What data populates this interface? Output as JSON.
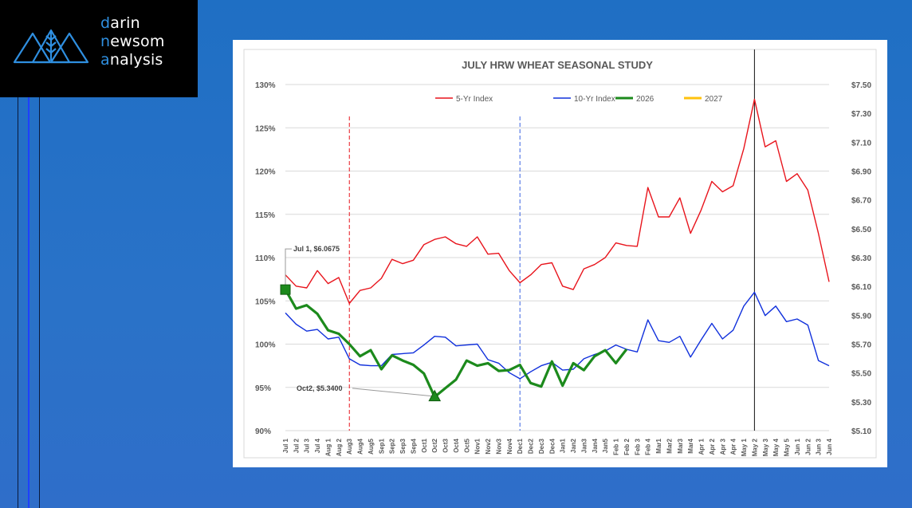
{
  "brand": {
    "line1_first": "d",
    "line1_rest": "arin",
    "line2_first": "n",
    "line2_mid": "ew",
    "line2_rest": "som",
    "line3_first": "a",
    "line3_rest": "nalysis",
    "logo_icon": "mountain-wheat-icon",
    "accent_color": "#2f8fe0"
  },
  "chart_data": {
    "type": "line",
    "title": "JULY HRW WHEAT SEASONAL STUDY",
    "legend_position": "top",
    "grid": true,
    "x_categories": [
      "Jul 1",
      "Jul 2",
      "Jul 3",
      "Jul 4",
      "Aug 1",
      "Aug 2",
      "Aug3",
      "Aug4",
      "Aug5",
      "Sep1",
      "Sep2",
      "Sep3",
      "Sep4",
      "Oct1",
      "Oct2",
      "Oct3",
      "Oct4",
      "Oct5",
      "Nov1",
      "Nov2",
      "Nov3",
      "Nov4",
      "Dec1",
      "Dec2",
      "Dec3",
      "Dec4",
      "Jan1",
      "Jan2",
      "Jan3",
      "Jan4",
      "Jan5",
      "Feb 1",
      "Feb 2",
      "Feb 3",
      "Feb 4",
      "Mar1",
      "Mar2",
      "Mar3",
      "Mar4",
      "Apr 1",
      "Apr 2",
      "Apr 3",
      "Apr 4",
      "May 1",
      "May 2",
      "May 3",
      "May 4",
      "May 5",
      "Jun 1",
      "Jun 2",
      "Jun 3",
      "Jun 4"
    ],
    "y_left": {
      "min": 90,
      "max": 130,
      "step": 5,
      "ticks": [
        "90%",
        "95%",
        "100%",
        "105%",
        "110%",
        "115%",
        "120%",
        "125%",
        "130%"
      ]
    },
    "y_right": {
      "min": 5.1,
      "max": 7.5,
      "ticks": [
        "$5.10",
        "$5.30",
        "$5.50",
        "$5.70",
        "$5.90",
        "$6.10",
        "$6.30",
        "$6.50",
        "$6.70",
        "$6.90",
        "$7.10",
        "$7.30",
        "$7.50"
      ]
    },
    "series": [
      {
        "name": "5-Yr Index",
        "color": "#e8141c",
        "width": 1.4,
        "values": [
          108.0,
          106.7,
          106.5,
          108.5,
          107.0,
          107.7,
          104.7,
          106.2,
          106.5,
          107.6,
          109.8,
          109.3,
          109.7,
          111.5,
          112.1,
          112.4,
          111.6,
          111.3,
          112.4,
          110.4,
          110.5,
          108.5,
          107.1,
          108.0,
          109.2,
          109.4,
          106.7,
          106.3,
          108.7,
          109.2,
          110.0,
          111.7,
          111.4,
          111.3,
          118.1,
          114.7,
          114.7,
          116.9,
          112.8,
          115.5,
          118.8,
          117.6,
          118.3,
          122.6,
          128.3,
          122.8,
          123.5,
          118.8,
          119.7,
          117.8,
          112.8,
          107.2
        ]
      },
      {
        "name": "10-Yr Index",
        "color": "#1030dc",
        "width": 1.4,
        "values": [
          103.6,
          102.3,
          101.5,
          101.7,
          100.6,
          100.8,
          98.3,
          97.6,
          97.5,
          97.5,
          98.8,
          98.9,
          99.0,
          99.9,
          100.9,
          100.8,
          99.8,
          99.9,
          100.0,
          98.2,
          97.8,
          96.7,
          96.0,
          96.8,
          97.5,
          97.9,
          97.0,
          97.1,
          98.3,
          98.8,
          99.2,
          99.9,
          99.4,
          99.1,
          102.8,
          100.4,
          100.2,
          100.9,
          98.5,
          100.5,
          102.4,
          100.6,
          101.6,
          104.4,
          106.0,
          103.3,
          104.4,
          102.6,
          102.9,
          102.2,
          98.1,
          97.5
        ]
      },
      {
        "name": "2026",
        "color": "#1c8a1c",
        "width": 3.2,
        "values": [
          106.3,
          104.1,
          104.5,
          103.5,
          101.6,
          101.2,
          100.0,
          98.6,
          99.3,
          97.1,
          98.7,
          98.1,
          97.6,
          96.6,
          93.9,
          94.9,
          95.9,
          98.1,
          97.5,
          97.8,
          96.9,
          97.0,
          97.6,
          95.5,
          95.1,
          98.0,
          95.2,
          97.8,
          97.0,
          98.6,
          99.3,
          97.8,
          99.4
        ]
      },
      {
        "name": "2027",
        "color": "#ffc20e",
        "width": 3.2,
        "values": []
      }
    ],
    "annotations": [
      {
        "label": "Jul 1, $6.0675",
        "x_index": 0,
        "y": 106.3,
        "marker": "square"
      },
      {
        "label": "Oct2, $5.3400",
        "x_index": 14,
        "y": 93.9,
        "marker": "triangle"
      }
    ],
    "vertical_lines": [
      {
        "x_index": 6,
        "color": "#e8141c",
        "style": "dashed"
      },
      {
        "x_index": 22,
        "color": "#3a62e0",
        "style": "dashed"
      },
      {
        "x_index": 44,
        "color": "#111111",
        "style": "solid"
      }
    ]
  }
}
